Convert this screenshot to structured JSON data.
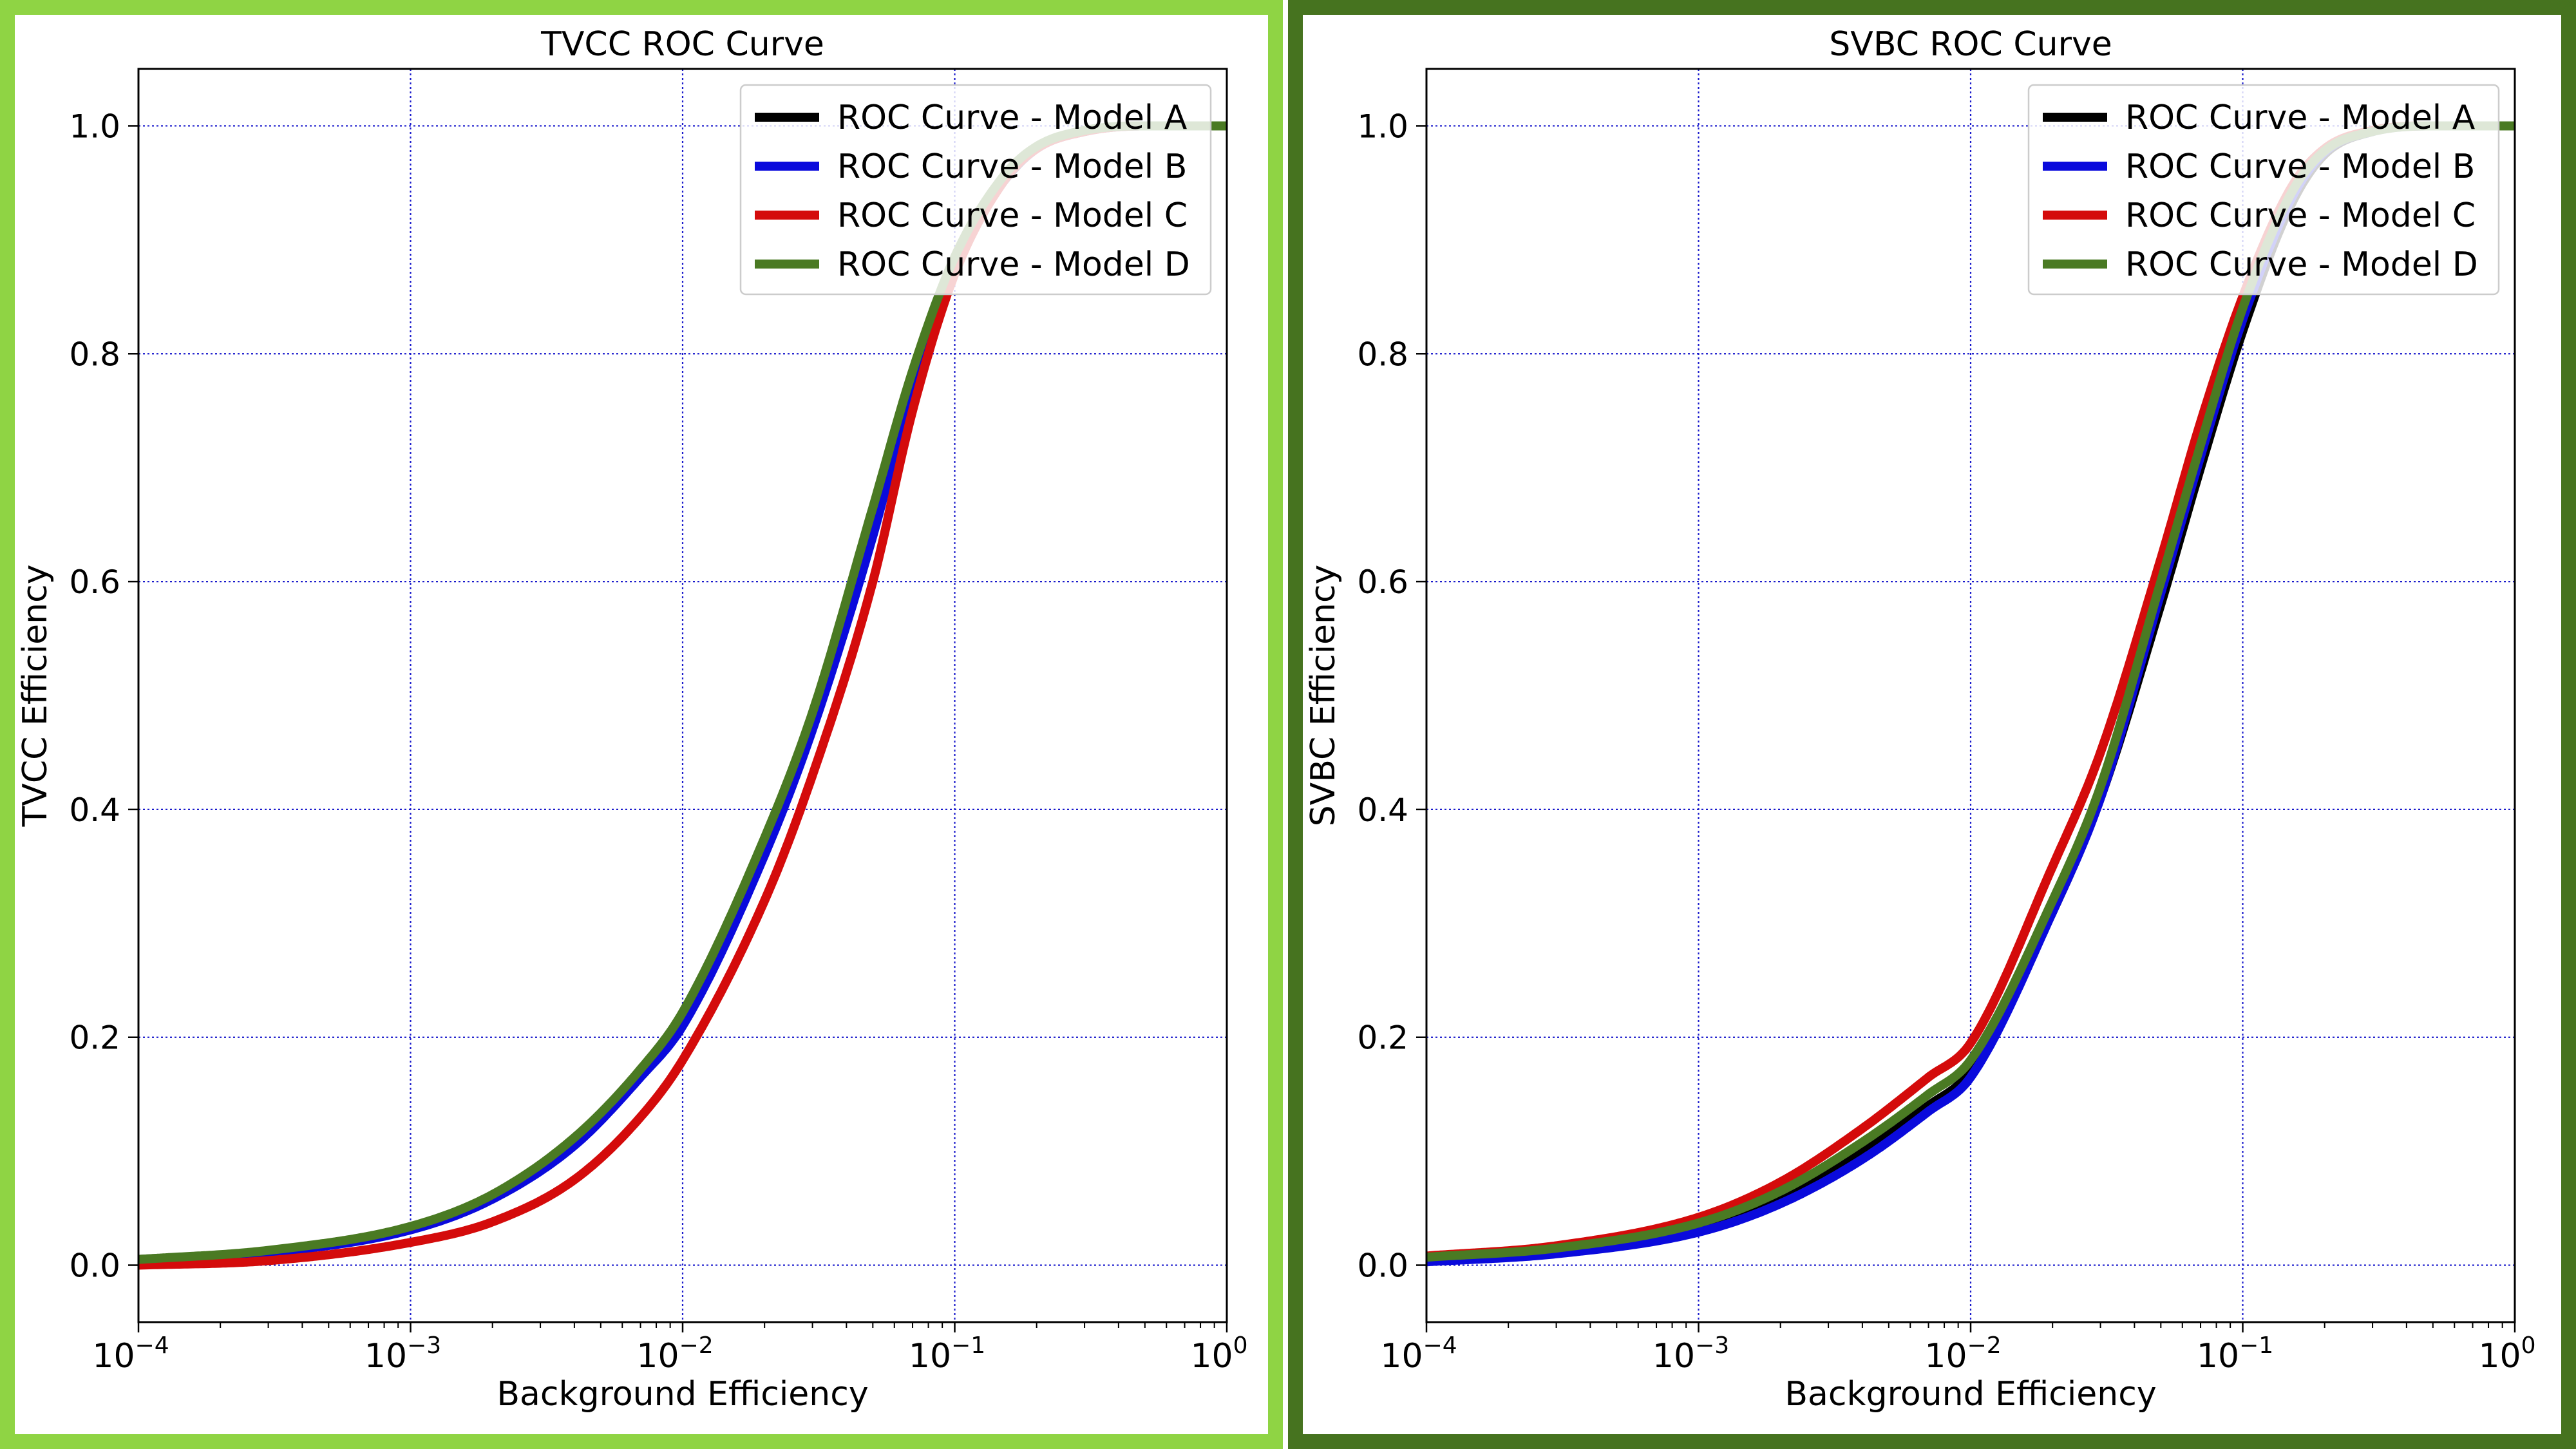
{
  "charts": [
    {
      "type": "line",
      "panel_color": "#8fd444",
      "title": "TVCC ROC Curve",
      "xlabel": "Background Efficiency",
      "ylabel": "TVCC Efficiency",
      "xscale": "log",
      "xlim": [
        0.0001,
        1
      ],
      "ylim": [
        -0.05,
        1.05
      ],
      "grid": true,
      "grid_color": "#1a1acc",
      "legend_position": "upper right",
      "xticks": [
        {
          "base": "10",
          "exp": "−4",
          "value": 0.0001
        },
        {
          "base": "10",
          "exp": "−3",
          "value": 0.001
        },
        {
          "base": "10",
          "exp": "−2",
          "value": 0.01
        },
        {
          "base": "10",
          "exp": "−1",
          "value": 0.1
        },
        {
          "base": "10",
          "exp": "0",
          "value": 1
        }
      ],
      "yticks": [
        "0.0",
        "0.2",
        "0.4",
        "0.6",
        "0.8",
        "1.0"
      ],
      "x": [
        0.0001,
        0.0003,
        0.001,
        0.002,
        0.004,
        0.007,
        0.01,
        0.02,
        0.03,
        0.05,
        0.07,
        0.1,
        0.15,
        0.2,
        0.3,
        0.5,
        1
      ],
      "series": [
        {
          "name": "ROC Curve - Model A",
          "color": "#000000",
          "values": [
            0.005,
            0.012,
            0.033,
            0.06,
            0.11,
            0.17,
            0.22,
            0.37,
            0.48,
            0.66,
            0.78,
            0.88,
            0.95,
            0.98,
            0.995,
            1.0,
            1.0
          ]
        },
        {
          "name": "ROC Curve - Model B",
          "color": "#0a0adc",
          "values": [
            0.004,
            0.011,
            0.031,
            0.058,
            0.105,
            0.165,
            0.21,
            0.36,
            0.47,
            0.64,
            0.77,
            0.875,
            0.95,
            0.98,
            0.995,
            1.0,
            1.0
          ]
        },
        {
          "name": "ROC Curve - Model C",
          "color": "#d40b0b",
          "values": [
            0.0,
            0.004,
            0.02,
            0.038,
            0.075,
            0.13,
            0.18,
            0.32,
            0.43,
            0.6,
            0.75,
            0.87,
            0.95,
            0.98,
            0.995,
            1.0,
            1.0
          ]
        },
        {
          "name": "ROC Curve - Model D",
          "color": "#4a7a23",
          "values": [
            0.005,
            0.013,
            0.034,
            0.062,
            0.112,
            0.172,
            0.222,
            0.375,
            0.485,
            0.665,
            0.785,
            0.885,
            0.955,
            0.982,
            0.996,
            1.0,
            1.0
          ]
        }
      ]
    },
    {
      "type": "line",
      "panel_color": "#46731f",
      "title": "SVBC ROC Curve",
      "xlabel": "Background Efficiency",
      "ylabel": "SVBC Efficiency",
      "xscale": "log",
      "xlim": [
        0.0001,
        1
      ],
      "ylim": [
        -0.05,
        1.05
      ],
      "grid": true,
      "grid_color": "#1a1acc",
      "legend_position": "upper right",
      "xticks": [
        {
          "base": "10",
          "exp": "−4",
          "value": 0.0001
        },
        {
          "base": "10",
          "exp": "−3",
          "value": 0.001
        },
        {
          "base": "10",
          "exp": "−2",
          "value": 0.01
        },
        {
          "base": "10",
          "exp": "−1",
          "value": 0.1
        },
        {
          "base": "10",
          "exp": "0",
          "value": 1
        }
      ],
      "yticks": [
        "0.0",
        "0.2",
        "0.4",
        "0.6",
        "0.8",
        "1.0"
      ],
      "x": [
        0.0001,
        0.0003,
        0.001,
        0.002,
        0.004,
        0.007,
        0.01,
        0.02,
        0.03,
        0.05,
        0.07,
        0.1,
        0.15,
        0.2,
        0.3,
        0.5,
        1
      ],
      "series": [
        {
          "name": "ROC Curve - Model A",
          "color": "#000000",
          "values": [
            0.006,
            0.014,
            0.034,
            0.06,
            0.1,
            0.14,
            0.17,
            0.31,
            0.41,
            0.58,
            0.7,
            0.82,
            0.93,
            0.975,
            0.995,
            1.0,
            1.0
          ]
        },
        {
          "name": "ROC Curve - Model B",
          "color": "#0a0adc",
          "values": [
            0.003,
            0.01,
            0.029,
            0.054,
            0.093,
            0.135,
            0.165,
            0.31,
            0.41,
            0.59,
            0.71,
            0.83,
            0.935,
            0.977,
            0.995,
            1.0,
            1.0
          ]
        },
        {
          "name": "ROC Curve - Model C",
          "color": "#d40b0b",
          "values": [
            0.008,
            0.017,
            0.042,
            0.073,
            0.12,
            0.165,
            0.195,
            0.35,
            0.45,
            0.62,
            0.74,
            0.85,
            0.945,
            0.98,
            0.996,
            1.0,
            1.0
          ]
        },
        {
          "name": "ROC Curve - Model D",
          "color": "#4a7a23",
          "values": [
            0.007,
            0.015,
            0.037,
            0.065,
            0.108,
            0.15,
            0.18,
            0.32,
            0.42,
            0.6,
            0.72,
            0.84,
            0.94,
            0.978,
            0.995,
            1.0,
            1.0
          ]
        }
      ]
    }
  ]
}
